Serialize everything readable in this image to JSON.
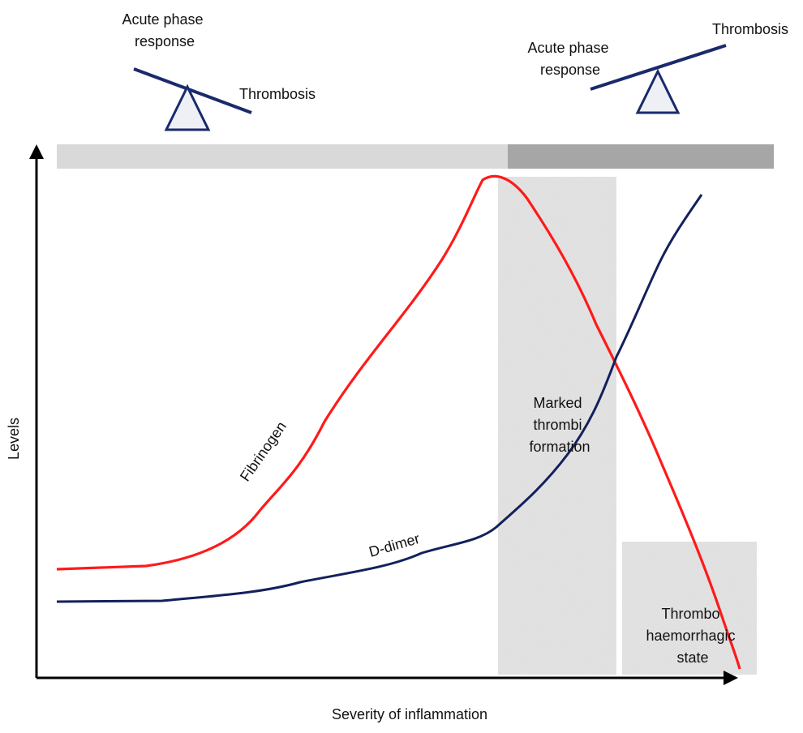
{
  "colors": {
    "fibrinogen": "#ff1a1a",
    "d_dimer": "#14205c",
    "axis": "#000000",
    "bar_light": "#d9d9d9",
    "bar_dark": "#a6a6a6",
    "seesaw": "#1a2a6c",
    "seesaw_fill": "#eef0f6",
    "stipple": "#e6e6e6"
  },
  "balance_left": {
    "label_acute": [
      "Acute phase",
      "response"
    ],
    "label_thrombosis": "Thrombosis"
  },
  "balance_right": {
    "label_acute": [
      "Acute phase",
      "response"
    ],
    "label_thrombosis": "Thrombosis"
  },
  "axes": {
    "y_label": "Levels",
    "x_label": "Severity of inflammation"
  },
  "regions": {
    "marked": [
      "Marked",
      "thrombi",
      "formation"
    ],
    "thrombo": [
      "Thrombo",
      "haemorrhagic",
      "state"
    ]
  },
  "curves": {
    "fibrinogen_label": "Fibrinogen",
    "d_dimer_label": "D-dimer"
  },
  "chart_data": {
    "type": "line",
    "series": [
      {
        "name": "Fibrinogen",
        "shape": "rises from low baseline to a peak, then falls steeply"
      },
      {
        "name": "D-dimer",
        "shape": "low flat baseline, then rises steeply"
      }
    ]
  }
}
